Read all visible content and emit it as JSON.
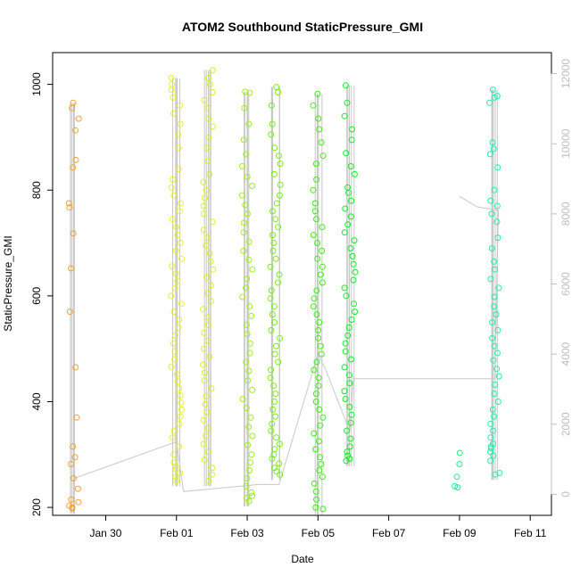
{
  "chart_data": {
    "type": "scatter",
    "title": "ATOM2 Southbound StaticPressure_GMI",
    "xlabel": "Date",
    "ylabel": "StaticPressure_GMI",
    "x_ticks": [
      "Jan 30",
      "Feb 01",
      "Feb 03",
      "Feb 05",
      "Feb 07",
      "Feb 09",
      "Feb 11"
    ],
    "x_tick_days": [
      30,
      32,
      34,
      36,
      38,
      40,
      42
    ],
    "xlim": [
      28.5,
      42.6
    ],
    "ylim": [
      185,
      1060
    ],
    "y_ticks": [
      200,
      400,
      600,
      800,
      1000
    ],
    "y2_ticks": [
      0,
      2000,
      4000,
      6000,
      8000,
      10000,
      12000
    ],
    "y2lim": [
      -600,
      12600
    ],
    "grid": false,
    "colors": {
      "line": "#c8c8c8",
      "axis": "#000000",
      "right_axis": "#bdbdbd"
    },
    "series": [
      {
        "day": 29.1,
        "color": "#f4a030",
        "values": [
          198,
          200,
          203,
          210,
          215,
          235,
          255,
          282,
          295,
          315,
          370,
          465,
          570,
          652,
          718,
          767,
          775,
          843,
          857,
          913,
          935,
          955,
          965
        ]
      },
      {
        "day": 32.0,
        "color": "#e4f220",
        "values": [
          250,
          258,
          265,
          272,
          278,
          285,
          300,
          315,
          332,
          345,
          358,
          372,
          385,
          398,
          412,
          425,
          438,
          452,
          466,
          480,
          495,
          510,
          525,
          540,
          555,
          570,
          585,
          600,
          615,
          628,
          642,
          656,
          670,
          685,
          700,
          715,
          730,
          745,
          760,
          775,
          790,
          805,
          820,
          840,
          880,
          905,
          925,
          945,
          960,
          975,
          990,
          1000,
          1012
        ]
      },
      {
        "day": 32.9,
        "color": "#d6f21a",
        "values": [
          250,
          262,
          275,
          290,
          305,
          320,
          335,
          350,
          365,
          380,
          395,
          410,
          425,
          440,
          455,
          470,
          485,
          500,
          515,
          530,
          545,
          560,
          575,
          590,
          605,
          620,
          635,
          650,
          665,
          680,
          695,
          710,
          725,
          740,
          755,
          770,
          785,
          800,
          815,
          830,
          855,
          880,
          900,
          920,
          935,
          955,
          970,
          985,
          1000,
          1012,
          1027
        ]
      },
      {
        "day": 34.0,
        "color": "#9ef015",
        "values": [
          212,
          218,
          222,
          228,
          240,
          255,
          270,
          285,
          300,
          318,
          335,
          352,
          370,
          388,
          405,
          422,
          440,
          458,
          475,
          492,
          510,
          528,
          545,
          562,
          580,
          598,
          615,
          632,
          650,
          668,
          685,
          702,
          720,
          738,
          755,
          772,
          790,
          808,
          825,
          845,
          868,
          895,
          925,
          955,
          984,
          986
        ]
      },
      {
        "day": 34.8,
        "color": "#78ee12",
        "values": [
          262,
          268,
          275,
          283,
          292,
          300,
          310,
          320,
          332,
          345,
          358,
          372,
          385,
          400,
          415,
          430,
          445,
          460,
          475,
          490,
          505,
          520,
          535,
          550,
          565,
          580,
          595,
          610,
          625,
          640,
          655,
          670,
          685,
          700,
          715,
          730,
          745,
          760,
          775,
          790,
          810,
          830,
          850,
          865,
          880,
          905,
          925,
          960,
          985,
          995
        ]
      },
      {
        "day": 36.0,
        "color": "#3cee10",
        "values": [
          197,
          200,
          215,
          230,
          245,
          258,
          270,
          282,
          295,
          310,
          325,
          340,
          355,
          370,
          385,
          400,
          415,
          430,
          445,
          460,
          475,
          490,
          505,
          520,
          535,
          550,
          565,
          580,
          595,
          610,
          625,
          640,
          655,
          670,
          685,
          700,
          715,
          730,
          745,
          760,
          775,
          800,
          820,
          850,
          865,
          890,
          915,
          935,
          960,
          982
        ]
      },
      {
        "day": 36.9,
        "color": "#10ee22",
        "values": [
          288,
          292,
          298,
          305,
          315,
          330,
          345,
          360,
          375,
          390,
          405,
          420,
          435,
          450,
          465,
          480,
          495,
          510,
          525,
          540,
          555,
          570,
          585,
          600,
          615,
          630,
          645,
          660,
          675,
          690,
          705,
          720,
          735,
          750,
          765,
          780,
          795,
          805,
          830,
          845,
          870,
          895,
          915,
          940,
          965,
          998
        ]
      },
      {
        "day": 40.0,
        "color": "#1ef088",
        "values": [
          238,
          240,
          258,
          282,
          303
        ]
      },
      {
        "day": 41.0,
        "color": "#1ef0a8",
        "values": [
          262,
          265,
          288,
          298,
          305,
          312,
          315,
          320,
          332,
          345,
          358,
          372,
          385,
          400,
          415,
          432,
          448,
          462,
          478,
          492,
          505,
          520,
          535,
          550,
          565,
          580,
          598,
          615,
          632,
          650,
          665,
          690,
          710,
          740,
          755,
          770,
          780,
          800,
          843,
          868,
          878,
          890,
          965,
          975,
          978,
          990
        ]
      }
    ],
    "right_axis_line": [
      [
        29.1,
        450
      ],
      [
        32.0,
        1500
      ],
      [
        32.2,
        80
      ],
      [
        34.0,
        250
      ],
      [
        34.3,
        280
      ],
      [
        34.9,
        280
      ],
      [
        36.0,
        4000
      ],
      [
        36.2,
        3600
      ],
      [
        36.9,
        1800
      ],
      [
        37.0,
        3300
      ],
      [
        41.0,
        3300
      ],
      [
        41.1,
        8100
      ],
      [
        40.5,
        8200
      ],
      [
        40.0,
        8500
      ]
    ]
  }
}
